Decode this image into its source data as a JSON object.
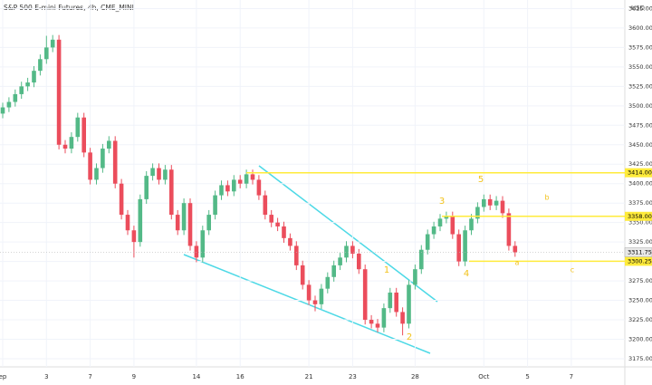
{
  "chart_data": {
    "type": "candlestick",
    "title": "S&P 500 E-mini Futures, 4h, CME_MINI",
    "currency": "USD",
    "categories": [
      "ep",
      null,
      null,
      null,
      null,
      null,
      null,
      "3",
      null,
      null,
      null,
      null,
      null,
      null,
      "7",
      null,
      null,
      null,
      null,
      null,
      null,
      "9",
      null,
      null,
      null,
      null,
      null,
      null,
      null,
      null,
      null,
      "14",
      null,
      null,
      null,
      null,
      null,
      null,
      "16",
      null,
      null,
      null,
      null,
      null,
      null,
      null,
      null,
      null,
      null,
      "21",
      null,
      null,
      null,
      null,
      null,
      null,
      "23",
      null,
      null,
      null,
      null,
      null,
      null,
      null,
      null,
      null,
      "28",
      null,
      null,
      null,
      null,
      null,
      null,
      null,
      null,
      null,
      null,
      "Oct",
      null,
      null,
      null,
      null,
      null,
      null,
      "5",
      null,
      null,
      null,
      null,
      null,
      null,
      "7",
      null,
      null,
      null,
      null,
      null,
      null,
      null,
      null
    ],
    "open": [
      3490,
      3498,
      3505,
      3515,
      3525,
      3530,
      3545,
      3560,
      3575,
      3585,
      3450,
      3445,
      3460,
      3485,
      3440,
      3405,
      3420,
      3445,
      3455,
      3400,
      3360,
      3340,
      3325,
      3380,
      3410,
      3420,
      3405,
      3418,
      3360,
      3340,
      3375,
      3320,
      3305,
      3340,
      3360,
      3385,
      3398,
      3390,
      3405,
      3400,
      3412,
      3405,
      3385,
      3360,
      3350,
      3345,
      3330,
      3320,
      3295,
      3270,
      3250,
      3245,
      3265,
      3280,
      3295,
      3305,
      3320,
      3310,
      3290,
      3225,
      3220,
      3215,
      3240,
      3260,
      3235,
      3220,
      3270,
      3290,
      3315,
      3335,
      3345,
      3355,
      3358,
      3335,
      3300,
      3340,
      3355,
      3370,
      3380,
      3372,
      3378,
      3362,
      3320,
      null,
      null,
      null,
      null,
      null,
      null,
      null,
      null,
      null,
      null,
      null,
      null,
      null,
      null,
      null,
      null,
      null
    ],
    "high": [
      3504,
      3511,
      3521,
      3531,
      3536,
      3551,
      3566,
      3590,
      3591,
      3591,
      3456,
      3466,
      3491,
      3491,
      3446,
      3426,
      3451,
      3461,
      3461,
      3406,
      3366,
      3346,
      3386,
      3416,
      3426,
      3426,
      3424,
      3424,
      3366,
      3381,
      3381,
      3326,
      3346,
      3366,
      3391,
      3404,
      3404,
      3411,
      3411,
      3418,
      3418,
      3411,
      3391,
      3366,
      3356,
      3351,
      3336,
      3326,
      3301,
      3276,
      3256,
      3271,
      3286,
      3301,
      3311,
      3326,
      3326,
      3316,
      3296,
      3231,
      3226,
      3246,
      3266,
      3266,
      3241,
      3276,
      3296,
      3321,
      3341,
      3351,
      3361,
      3364,
      3364,
      3341,
      3346,
      3361,
      3376,
      3386,
      3386,
      3384,
      3384,
      3368,
      3326,
      null,
      null,
      null,
      null,
      null,
      null,
      null,
      null,
      null,
      null,
      null,
      null,
      null,
      null,
      null,
      null,
      null
    ],
    "low": [
      3484,
      3492,
      3499,
      3509,
      3519,
      3524,
      3539,
      3554,
      3569,
      3444,
      3439,
      3439,
      3454,
      3434,
      3399,
      3399,
      3414,
      3439,
      3394,
      3354,
      3334,
      3305,
      3319,
      3374,
      3404,
      3399,
      3399,
      3354,
      3334,
      3334,
      3314,
      3299,
      3299,
      3334,
      3354,
      3379,
      3384,
      3384,
      3394,
      3394,
      3399,
      3379,
      3354,
      3344,
      3339,
      3324,
      3314,
      3289,
      3264,
      3244,
      3236,
      3239,
      3259,
      3274,
      3289,
      3299,
      3304,
      3284,
      3219,
      3214,
      3209,
      3209,
      3234,
      3229,
      3205,
      3214,
      3264,
      3284,
      3309,
      3329,
      3339,
      3349,
      3329,
      3294,
      3294,
      3334,
      3349,
      3364,
      3366,
      3366,
      3356,
      3314,
      3306,
      null,
      null,
      null,
      null,
      null,
      null,
      null,
      null,
      null,
      null,
      null,
      null,
      null,
      null,
      null,
      null,
      null
    ],
    "close": [
      3498,
      3505,
      3515,
      3525,
      3530,
      3545,
      3560,
      3575,
      3585,
      3450,
      3445,
      3460,
      3485,
      3440,
      3405,
      3420,
      3445,
      3455,
      3400,
      3360,
      3340,
      3325,
      3380,
      3410,
      3420,
      3405,
      3418,
      3360,
      3340,
      3375,
      3320,
      3305,
      3340,
      3360,
      3385,
      3398,
      3390,
      3405,
      3400,
      3412,
      3405,
      3385,
      3360,
      3350,
      3345,
      3330,
      3320,
      3295,
      3270,
      3250,
      3245,
      3265,
      3280,
      3295,
      3305,
      3320,
      3310,
      3290,
      3225,
      3220,
      3215,
      3240,
      3260,
      3235,
      3220,
      3270,
      3290,
      3315,
      3335,
      3345,
      3355,
      3358,
      3335,
      3300,
      3340,
      3355,
      3370,
      3380,
      3372,
      3378,
      3362,
      3320,
      3311.75,
      null,
      null,
      null,
      null,
      null,
      null,
      null,
      null,
      null,
      null,
      null,
      null,
      null,
      null,
      null,
      null,
      null
    ],
    "up_color": "#53b987",
    "down_color": "#eb4d5c",
    "ylim": [
      3164.5,
      3636
    ],
    "yticks": [
      {
        "value": 3175,
        "label": "3175.00"
      },
      {
        "value": 3200,
        "label": "3200.00"
      },
      {
        "value": 3225,
        "label": "3225.00"
      },
      {
        "value": 3250,
        "label": "3250.00"
      },
      {
        "value": 3275,
        "label": "3275.00"
      },
      {
        "value": 3300,
        "label": "3300.00"
      },
      {
        "value": 3325,
        "label": "3325.00"
      },
      {
        "value": 3350,
        "label": "3350.00"
      },
      {
        "value": 3375,
        "label": "3375.00"
      },
      {
        "value": 3400,
        "label": "3400.00"
      },
      {
        "value": 3425,
        "label": "3425.00"
      },
      {
        "value": 3450,
        "label": "3450.00"
      },
      {
        "value": 3475,
        "label": "3475.00"
      },
      {
        "value": 3500,
        "label": "3500.00"
      },
      {
        "value": 3525,
        "label": "3525.00"
      },
      {
        "value": 3550,
        "label": "3550.00"
      },
      {
        "value": 3575,
        "label": "3575.00"
      },
      {
        "value": 3600,
        "label": "3600.00"
      },
      {
        "value": 3625,
        "label": "3625.00"
      }
    ],
    "grid": true,
    "levels": [
      {
        "value": 3414,
        "label": "3414.00"
      },
      {
        "value": 3358,
        "label": "3358.00"
      },
      {
        "value": 3300.25,
        "label": "3300.25"
      }
    ],
    "level_color": "#ffeb3b",
    "last_price": {
      "value": 3311.75,
      "label": "3311.75"
    },
    "wave_labels": [
      "1",
      "2",
      "3",
      "4",
      "5",
      "a",
      "b",
      "c"
    ],
    "wave_color": "#f2c21b",
    "trendline_color": "#4dd9e6"
  }
}
